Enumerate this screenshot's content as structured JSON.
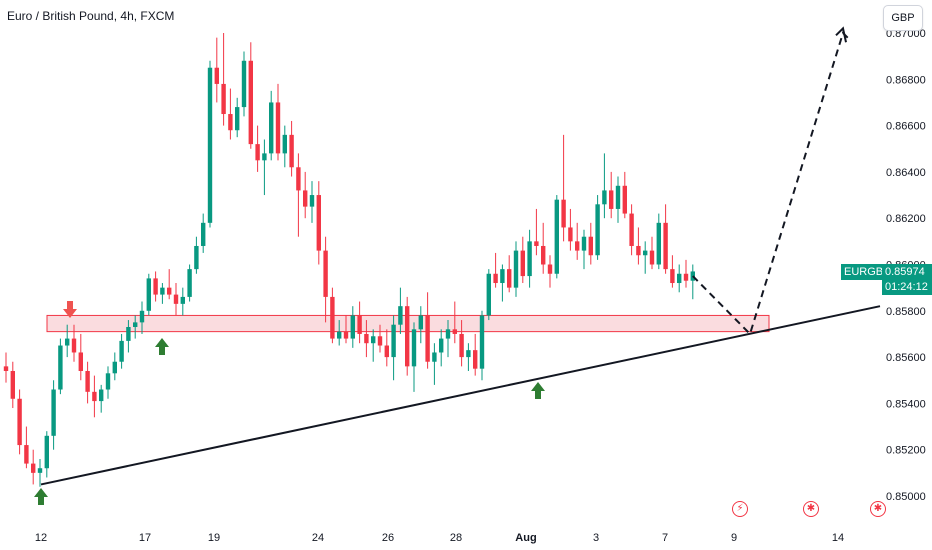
{
  "header": {
    "title": "Euro / British Pound, 4h, FXCM",
    "currency_button": "GBP"
  },
  "price_axis": {
    "ticks": [
      "0.87000",
      "0.86800",
      "0.86600",
      "0.86400",
      "0.86200",
      "0.86000",
      "0.85800",
      "0.85600",
      "0.85400",
      "0.85200",
      "0.85000"
    ]
  },
  "time_axis": {
    "labels": [
      "12",
      "17",
      "19",
      "24",
      "26",
      "28",
      "Aug",
      "3",
      "7",
      "9",
      "14"
    ]
  },
  "last_price": {
    "symbol": "EURGBP",
    "value": "0.85974",
    "countdown": "01:24:12",
    "color": "#089981"
  },
  "colors": {
    "up": "#089981",
    "down": "#f23645",
    "zone_fill": "#f7c5ca",
    "zone_border": "#f23645",
    "trendline": "#131722",
    "arrow_up": "#2e7d32",
    "arrow_down": "#ef5350"
  },
  "events": [
    {
      "icon": "flash-icon",
      "glyph": "⚡"
    },
    {
      "icon": "uk-flag-icon",
      "glyph": "✱"
    },
    {
      "icon": "uk-flag-icon",
      "glyph": "✱"
    }
  ],
  "chart_data": {
    "type": "candlestick",
    "symbol": "EURGBP",
    "timeframe": "4h",
    "ylim": [
      0.8497,
      0.8702
    ],
    "x_labels": [
      "12",
      "17",
      "19",
      "24",
      "26",
      "28",
      "Aug",
      "3",
      "7",
      "9",
      "14"
    ],
    "candles_ohlc": [
      [
        0.8556,
        0.8562,
        0.8549,
        0.8554
      ],
      [
        0.8554,
        0.8558,
        0.8538,
        0.8542
      ],
      [
        0.8542,
        0.8546,
        0.8518,
        0.8522
      ],
      [
        0.8522,
        0.853,
        0.8512,
        0.8514
      ],
      [
        0.8514,
        0.852,
        0.8505,
        0.851
      ],
      [
        0.851,
        0.8516,
        0.8504,
        0.8512
      ],
      [
        0.8512,
        0.8528,
        0.8508,
        0.8526
      ],
      [
        0.8526,
        0.855,
        0.852,
        0.8546
      ],
      [
        0.8546,
        0.8568,
        0.8544,
        0.8565
      ],
      [
        0.8565,
        0.8574,
        0.856,
        0.8568
      ],
      [
        0.8568,
        0.8574,
        0.8558,
        0.8562
      ],
      [
        0.8562,
        0.857,
        0.855,
        0.8554
      ],
      [
        0.8554,
        0.8558,
        0.854,
        0.8545
      ],
      [
        0.8545,
        0.8552,
        0.8534,
        0.8541
      ],
      [
        0.8541,
        0.8548,
        0.8536,
        0.8546
      ],
      [
        0.8546,
        0.8556,
        0.8542,
        0.8553
      ],
      [
        0.8553,
        0.8562,
        0.855,
        0.8558
      ],
      [
        0.8558,
        0.857,
        0.8555,
        0.8567
      ],
      [
        0.8567,
        0.8576,
        0.8562,
        0.8573
      ],
      [
        0.8573,
        0.8578,
        0.8568,
        0.8575
      ],
      [
        0.8575,
        0.8584,
        0.857,
        0.858
      ],
      [
        0.858,
        0.8596,
        0.8578,
        0.8594
      ],
      [
        0.8594,
        0.8597,
        0.8584,
        0.8587
      ],
      [
        0.8587,
        0.8592,
        0.8583,
        0.859
      ],
      [
        0.859,
        0.8598,
        0.8585,
        0.8587
      ],
      [
        0.8587,
        0.8592,
        0.8578,
        0.8583
      ],
      [
        0.8583,
        0.859,
        0.8578,
        0.8586
      ],
      [
        0.8586,
        0.86,
        0.8584,
        0.8598
      ],
      [
        0.8598,
        0.8612,
        0.8596,
        0.8608
      ],
      [
        0.8608,
        0.8622,
        0.8605,
        0.8618
      ],
      [
        0.8618,
        0.8688,
        0.8616,
        0.8685
      ],
      [
        0.8685,
        0.8698,
        0.867,
        0.8678
      ],
      [
        0.8678,
        0.87,
        0.866,
        0.8665
      ],
      [
        0.8665,
        0.8676,
        0.8654,
        0.8658
      ],
      [
        0.8658,
        0.8672,
        0.8655,
        0.8668
      ],
      [
        0.8668,
        0.8692,
        0.8664,
        0.8688
      ],
      [
        0.8688,
        0.8696,
        0.865,
        0.8652
      ],
      [
        0.8652,
        0.866,
        0.864,
        0.8645
      ],
      [
        0.8645,
        0.8654,
        0.863,
        0.8648
      ],
      [
        0.8648,
        0.8675,
        0.8645,
        0.867
      ],
      [
        0.867,
        0.8678,
        0.8645,
        0.8648
      ],
      [
        0.8648,
        0.866,
        0.8642,
        0.8656
      ],
      [
        0.8656,
        0.8662,
        0.8638,
        0.8642
      ],
      [
        0.8642,
        0.8648,
        0.8612,
        0.8632
      ],
      [
        0.8632,
        0.864,
        0.862,
        0.8625
      ],
      [
        0.8625,
        0.8636,
        0.8618,
        0.863
      ],
      [
        0.863,
        0.8636,
        0.86,
        0.8606
      ],
      [
        0.8606,
        0.8612,
        0.8575,
        0.8586
      ],
      [
        0.8586,
        0.859,
        0.8566,
        0.8568
      ],
      [
        0.8568,
        0.8576,
        0.8565,
        0.8571
      ],
      [
        0.8571,
        0.8578,
        0.8566,
        0.8568
      ],
      [
        0.8568,
        0.8582,
        0.8564,
        0.8578
      ],
      [
        0.8578,
        0.8584,
        0.8566,
        0.857
      ],
      [
        0.857,
        0.8576,
        0.856,
        0.8566
      ],
      [
        0.8566,
        0.8572,
        0.8558,
        0.8569
      ],
      [
        0.8569,
        0.8574,
        0.8562,
        0.8565
      ],
      [
        0.8565,
        0.8572,
        0.8556,
        0.856
      ],
      [
        0.856,
        0.8578,
        0.855,
        0.8574
      ],
      [
        0.8574,
        0.859,
        0.857,
        0.8582
      ],
      [
        0.8582,
        0.8586,
        0.8552,
        0.8556
      ],
      [
        0.8556,
        0.8575,
        0.8545,
        0.8572
      ],
      [
        0.8572,
        0.8582,
        0.8566,
        0.8578
      ],
      [
        0.8578,
        0.8588,
        0.8555,
        0.8558
      ],
      [
        0.8558,
        0.8566,
        0.8548,
        0.8562
      ],
      [
        0.8562,
        0.8572,
        0.8556,
        0.8568
      ],
      [
        0.8568,
        0.8576,
        0.856,
        0.8572
      ],
      [
        0.8572,
        0.8584,
        0.8566,
        0.857
      ],
      [
        0.857,
        0.8576,
        0.8556,
        0.856
      ],
      [
        0.856,
        0.8566,
        0.8554,
        0.8563
      ],
      [
        0.8563,
        0.857,
        0.8552,
        0.8555
      ],
      [
        0.8555,
        0.858,
        0.855,
        0.8578
      ],
      [
        0.8578,
        0.8598,
        0.8576,
        0.8596
      ],
      [
        0.8596,
        0.8605,
        0.859,
        0.8592
      ],
      [
        0.8592,
        0.86,
        0.8584,
        0.8598
      ],
      [
        0.8598,
        0.8604,
        0.8588,
        0.859
      ],
      [
        0.859,
        0.861,
        0.8586,
        0.8606
      ],
      [
        0.8606,
        0.8612,
        0.8592,
        0.8595
      ],
      [
        0.8595,
        0.8615,
        0.859,
        0.861
      ],
      [
        0.861,
        0.8624,
        0.8604,
        0.8608
      ],
      [
        0.8608,
        0.8618,
        0.8596,
        0.86
      ],
      [
        0.86,
        0.8604,
        0.859,
        0.8596
      ],
      [
        0.8596,
        0.863,
        0.8594,
        0.8628
      ],
      [
        0.8628,
        0.8656,
        0.861,
        0.8616
      ],
      [
        0.8616,
        0.8624,
        0.8606,
        0.861
      ],
      [
        0.861,
        0.8618,
        0.8602,
        0.8606
      ],
      [
        0.8606,
        0.8615,
        0.8598,
        0.8612
      ],
      [
        0.8612,
        0.8618,
        0.86,
        0.8604
      ],
      [
        0.8604,
        0.863,
        0.8602,
        0.8626
      ],
      [
        0.8626,
        0.8648,
        0.862,
        0.8632
      ],
      [
        0.8632,
        0.864,
        0.862,
        0.8624
      ],
      [
        0.8624,
        0.8638,
        0.8618,
        0.8634
      ],
      [
        0.8634,
        0.864,
        0.862,
        0.8622
      ],
      [
        0.8622,
        0.8626,
        0.8604,
        0.8608
      ],
      [
        0.8608,
        0.8616,
        0.86,
        0.8604
      ],
      [
        0.8604,
        0.861,
        0.8596,
        0.8606
      ],
      [
        0.8606,
        0.8612,
        0.8598,
        0.86
      ],
      [
        0.86,
        0.8622,
        0.8598,
        0.8618
      ],
      [
        0.8618,
        0.8626,
        0.8596,
        0.8598
      ],
      [
        0.8598,
        0.8604,
        0.859,
        0.8592
      ],
      [
        0.8592,
        0.86,
        0.8588,
        0.8596
      ],
      [
        0.8596,
        0.8602,
        0.859,
        0.8593
      ],
      [
        0.8593,
        0.86,
        0.8585,
        0.8597
      ]
    ],
    "annotations": {
      "resistance_zone": [
        0.8571,
        0.8578
      ],
      "rising_trendline": {
        "from": {
          "x_label": "12",
          "price": 0.8505
        },
        "to": {
          "x_label": "14",
          "price": 0.8582
        }
      },
      "projection": {
        "style": "dashed",
        "path_prices": [
          0.8597,
          0.857,
          0.87
        ]
      },
      "markers": [
        {
          "type": "arrow-up",
          "near_x_label": "12",
          "price": 0.8502
        },
        {
          "type": "arrow-down",
          "near_x_label": "12",
          "price": 0.8585
        },
        {
          "type": "arrow-up",
          "near_x_label": "17",
          "price": 0.8562
        },
        {
          "type": "arrow-up",
          "near_x_label": "Aug",
          "price": 0.854
        }
      ]
    }
  }
}
